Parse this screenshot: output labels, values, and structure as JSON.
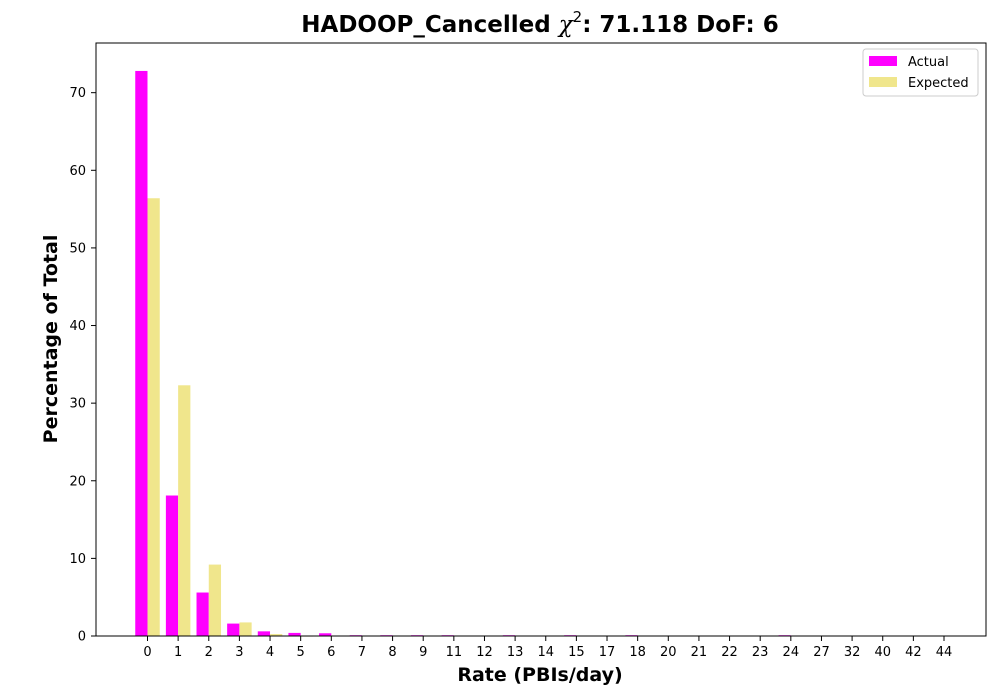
{
  "chart_data": {
    "type": "bar",
    "title_prefix": "HADOOP_Cancelled ",
    "title_chi": "χ",
    "title_sup": "2",
    "title_suffix": ": 71.118 DoF: 6",
    "xlabel": "Rate (PBIs/day)",
    "ylabel": "Percentage of Total",
    "categories": [
      "0",
      "1",
      "2",
      "3",
      "4",
      "5",
      "6",
      "7",
      "8",
      "9",
      "11",
      "12",
      "13",
      "14",
      "15",
      "17",
      "18",
      "20",
      "21",
      "22",
      "23",
      "24",
      "27",
      "32",
      "40",
      "42",
      "44"
    ],
    "series": [
      {
        "name": "Actual",
        "color": "#ff00ff",
        "values": [
          72.8,
          18.1,
          5.6,
          1.6,
          0.6,
          0.4,
          0.35,
          0.1,
          0.1,
          0.1,
          0.1,
          0.0,
          0.1,
          0.0,
          0.1,
          0.0,
          0.1,
          0.0,
          0.0,
          0.0,
          0.0,
          0.1,
          0.0,
          0.0,
          0.0,
          0.0,
          0.0
        ]
      },
      {
        "name": "Expected",
        "color": "#f0e68c",
        "values": [
          56.4,
          32.3,
          9.2,
          1.75,
          0.25,
          0.03,
          0.0,
          0.0,
          0.0,
          0.0,
          0.0,
          0.0,
          0.0,
          0.0,
          0.0,
          0.0,
          0.0,
          0.0,
          0.0,
          0.0,
          0.0,
          0.0,
          0.0,
          0.0,
          0.0,
          0.0,
          0.0
        ]
      }
    ],
    "yticks": [
      0,
      10,
      20,
      30,
      40,
      50,
      60,
      70
    ],
    "ylim": [
      0,
      76.4
    ],
    "grid": false,
    "legend_position": "top-right"
  }
}
